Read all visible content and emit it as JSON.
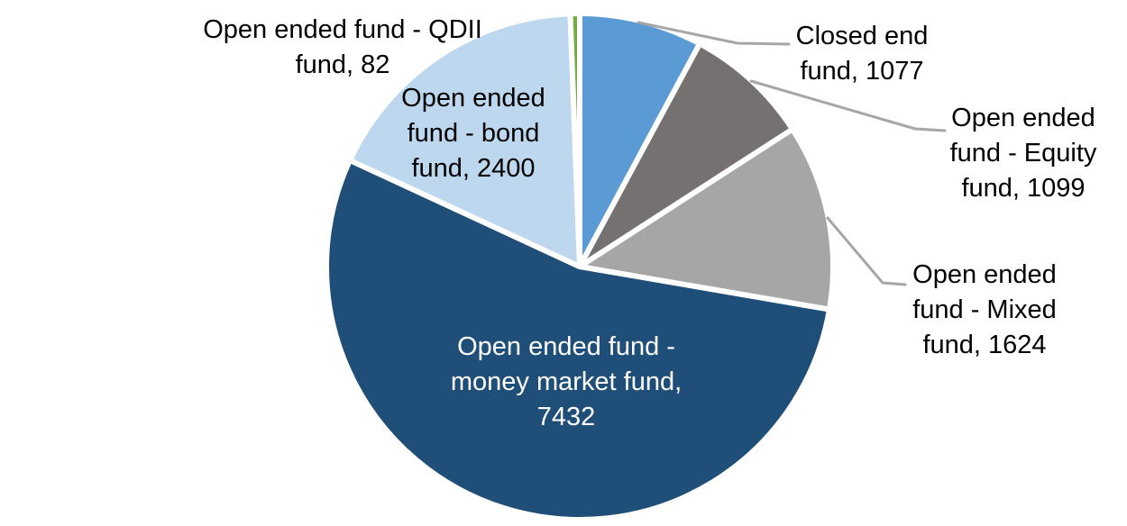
{
  "chart_data": {
    "type": "pie",
    "title": "",
    "legend": "none",
    "background_color": "#FFFFFF",
    "slice_border_color": "#FFFFFF",
    "leader_line_color": "#A6A6A6",
    "start_angle_deg": 0,
    "direction": "clockwise",
    "total": 13714,
    "categories": [
      "Closed end fund",
      "Open ended fund - Equity fund",
      "Open ended fund - Mixed fund",
      "Open ended fund - money market fund",
      "Open ended fund - bond fund",
      "Open ended fund - QDII fund"
    ],
    "values": [
      1077,
      1099,
      1624,
      7432,
      2400,
      82
    ],
    "slices": [
      {
        "id": "closed-end",
        "category": "Closed end fund",
        "value": 1077,
        "color": "#5B9BD5",
        "label": {
          "placement": "outside",
          "text_color": "#000000",
          "lines": [
            "Closed end",
            "fund, 1077"
          ]
        }
      },
      {
        "id": "equity",
        "category": "Open ended fund - Equity fund",
        "value": 1099,
        "color": "#757171",
        "label": {
          "placement": "outside",
          "text_color": "#000000",
          "lines": [
            "Open ended",
            "fund - Equity",
            "fund, 1099"
          ]
        }
      },
      {
        "id": "mixed",
        "category": "Open ended fund - Mixed fund",
        "value": 1624,
        "color": "#A6A6A6",
        "label": {
          "placement": "outside",
          "text_color": "#000000",
          "lines": [
            "Open ended",
            "fund - Mixed",
            "fund, 1624"
          ]
        }
      },
      {
        "id": "money-market",
        "category": "Open ended fund - money market fund",
        "value": 7432,
        "color": "#1F4E79",
        "label": {
          "placement": "inside",
          "text_color": "#FFFFFF",
          "lines": [
            "Open ended fund -",
            "money market fund,",
            "7432"
          ]
        }
      },
      {
        "id": "bond",
        "category": "Open ended fund - bond fund",
        "value": 2400,
        "color": "#BDD7EE",
        "label": {
          "placement": "inside",
          "text_color": "#000000",
          "lines": [
            "Open ended",
            "fund - bond",
            "fund, 2400"
          ]
        }
      },
      {
        "id": "qdii",
        "category": "Open ended fund - QDII fund",
        "value": 82,
        "color": "#70AD47",
        "label": {
          "placement": "outside",
          "text_color": "#000000",
          "lines": [
            "Open ended fund - QDII",
            "fund, 82"
          ]
        }
      }
    ]
  }
}
